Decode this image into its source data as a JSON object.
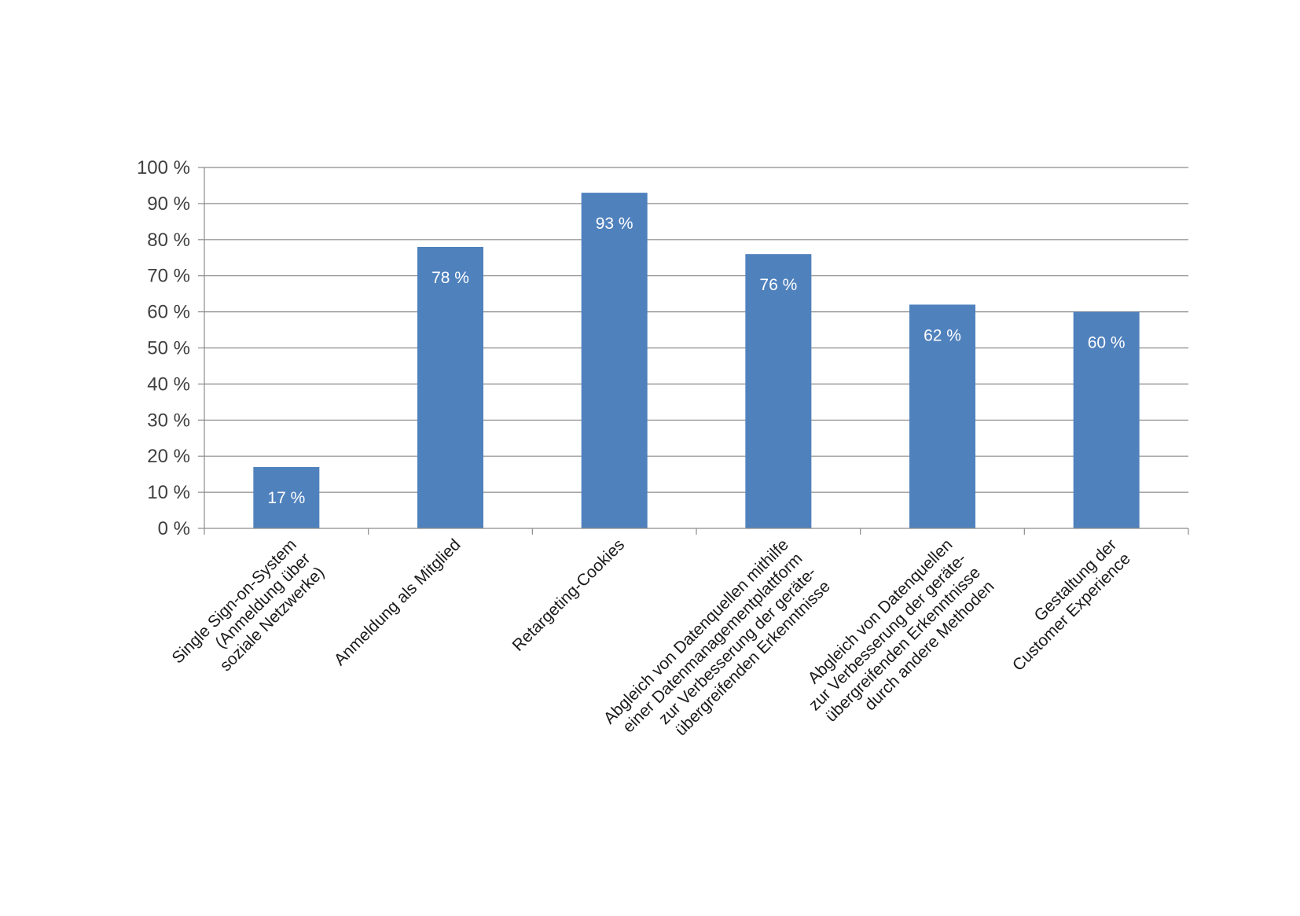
{
  "chart_data": {
    "type": "bar",
    "categories": [
      [
        "Single Sign-on-System",
        "(Anmeldung über",
        "soziale Netzwerke)"
      ],
      [
        "Anmeldung als Mitglied"
      ],
      [
        "Retargeting-Cookies"
      ],
      [
        "Abgleich von Datenquellen mithilfe",
        "einer Datenmanagementplattform",
        "zur Verbesserung  der geräte-",
        "übergreifenden Erkenntnisse"
      ],
      [
        "Abgleich von Datenquellen",
        "zur Verbesserung der geräte-",
        "übergreifenden Erkenntnisse",
        "durch andere Methoden"
      ],
      [
        "Gestaltung der",
        "Customer Experience"
      ]
    ],
    "values": [
      17,
      78,
      93,
      76,
      62,
      60
    ],
    "data_labels": [
      "17 %",
      "78 %",
      "93 %",
      "76 %",
      "62 %",
      "60 %"
    ],
    "ylim": [
      0,
      100
    ],
    "yticks": [
      0,
      10,
      20,
      30,
      40,
      50,
      60,
      70,
      80,
      90,
      100
    ],
    "ytick_labels": [
      "0 %",
      "10 %",
      "20 %",
      "30 %",
      "40 %",
      "50 %",
      "60 %",
      "70 %",
      "80 %",
      "90 %",
      "100 %"
    ],
    "grid": true,
    "bar_color": "#4f81bd",
    "title": "",
    "xlabel": "",
    "ylabel": ""
  }
}
